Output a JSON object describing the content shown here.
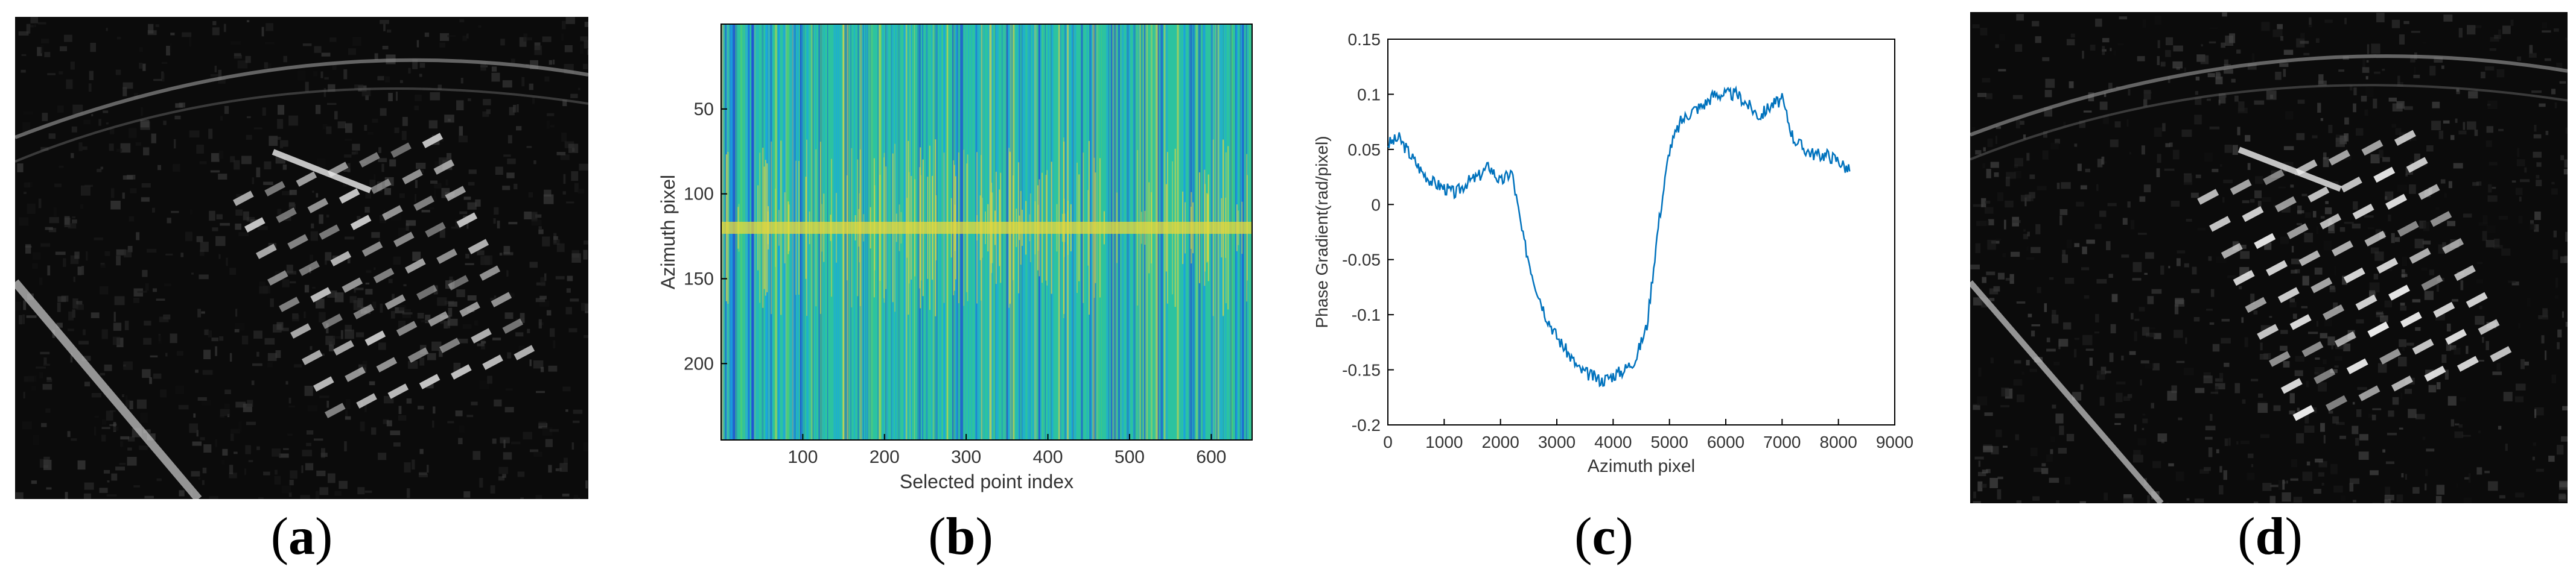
{
  "panels": [
    {
      "id": "a",
      "caption_letter": "a",
      "kind": "sar-image",
      "description_icon": "sar-image-before"
    },
    {
      "id": "b",
      "caption_letter": "b",
      "kind": "heatmap"
    },
    {
      "id": "c",
      "caption_letter": "c",
      "kind": "line-chart"
    },
    {
      "id": "d",
      "caption_letter": "d",
      "kind": "sar-image",
      "description_icon": "sar-image-after"
    }
  ],
  "chart_data": [
    {
      "type": "heatmap",
      "xlabel": "Selected point index",
      "ylabel": "Azimuth pixel",
      "xlim": [
        0,
        650
      ],
      "ylim": [
        0,
        245
      ],
      "y_reversed": true,
      "xticks": [
        100,
        200,
        300,
        400,
        500,
        600
      ],
      "yticks": [
        50,
        100,
        150,
        200
      ],
      "colormap": [
        "#1f4fd6",
        "#1aa7e0",
        "#2cc3a0",
        "#57cf6a",
        "#e8d83a"
      ],
      "bright_band_row": 120
    },
    {
      "type": "line",
      "xlabel": "Azimuth pixel",
      "ylabel": "Phase Gradient(rad/pixel)",
      "xlim": [
        0,
        9000
      ],
      "ylim": [
        -0.2,
        0.15
      ],
      "xticks": [
        0,
        1000,
        2000,
        3000,
        4000,
        5000,
        6000,
        7000,
        8000,
        9000
      ],
      "yticks": [
        -0.2,
        -0.15,
        -0.1,
        -0.05,
        0,
        0.05,
        0.1,
        0.15
      ],
      "line_color": "#0072bd",
      "series": [
        {
          "x": [
            0,
            200,
            400,
            600,
            800,
            1000,
            1200,
            1400,
            1600,
            1800,
            2000,
            2200,
            2400,
            2600,
            2800,
            3000,
            3200,
            3400,
            3600,
            3800,
            4000,
            4200,
            4400,
            4600,
            4800,
            5000,
            5200,
            5400,
            5600,
            5800,
            6000,
            6200,
            6400,
            6600,
            6800,
            7000,
            7200,
            7400,
            7600,
            7800,
            8000,
            8200
          ],
          "y": [
            0.055,
            0.06,
            0.045,
            0.03,
            0.02,
            0.015,
            0.01,
            0.02,
            0.025,
            0.035,
            0.02,
            0.03,
            -0.03,
            -0.07,
            -0.1,
            -0.12,
            -0.135,
            -0.15,
            -0.155,
            -0.16,
            -0.155,
            -0.15,
            -0.14,
            -0.11,
            -0.02,
            0.05,
            0.075,
            0.085,
            0.09,
            0.1,
            0.1,
            0.1,
            0.09,
            0.08,
            0.09,
            0.095,
            0.06,
            0.05,
            0.045,
            0.045,
            0.04,
            0.03
          ]
        }
      ]
    }
  ]
}
